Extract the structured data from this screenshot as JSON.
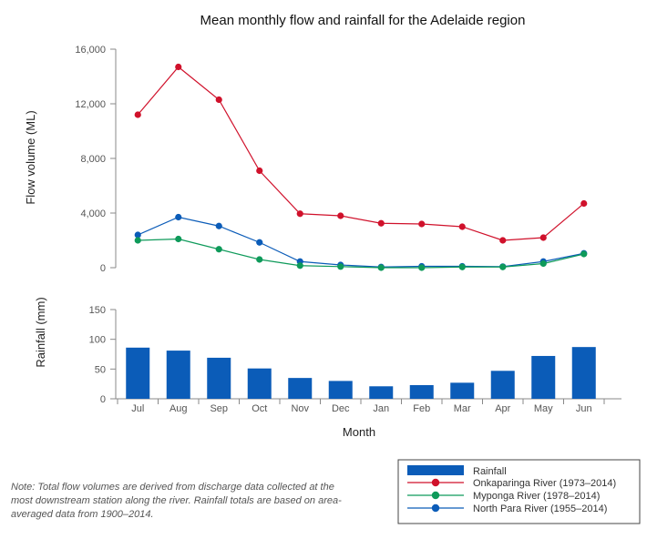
{
  "chart_data": {
    "type": "line+bar",
    "title": "Mean monthly flow and rainfall for the Adelaide region",
    "xlabel": "Month",
    "categories": [
      "Jul",
      "Aug",
      "Sep",
      "Oct",
      "Nov",
      "Dec",
      "Jan",
      "Feb",
      "Mar",
      "Apr",
      "May",
      "Jun"
    ],
    "flow": {
      "ylabel": "Flow volume (ML)",
      "ylim": [
        0,
        16000
      ],
      "yticks": [
        0,
        4000,
        8000,
        12000,
        16000
      ],
      "ytick_labels": [
        "0",
        "4,000",
        "8,000",
        "12,000",
        "16,000"
      ],
      "series": [
        {
          "name": "Onkaparinga River (1973–2014)",
          "color": "#d0112b",
          "values": [
            11200,
            14700,
            12300,
            7100,
            3950,
            3800,
            3250,
            3200,
            3000,
            2000,
            2200,
            4700
          ]
        },
        {
          "name": "Myponga River (1978–2014)",
          "color": "#0e9a5a",
          "values": [
            2000,
            2100,
            1350,
            600,
            150,
            80,
            0,
            0,
            50,
            50,
            300,
            1000
          ]
        },
        {
          "name": "North Para River (1955–2014)",
          "color": "#0b5cb8",
          "values": [
            2400,
            3700,
            3050,
            1850,
            450,
            200,
            50,
            100,
            100,
            80,
            450,
            1050
          ]
        }
      ]
    },
    "rainfall": {
      "name": "Rainfall",
      "color": "#0b5cb8",
      "ylabel": "Rainfall (mm)",
      "ylim": [
        0,
        150
      ],
      "yticks": [
        0,
        50,
        100,
        150
      ],
      "ytick_labels": [
        "0",
        "50",
        "100",
        "150"
      ],
      "values": [
        86,
        81,
        69,
        51,
        35,
        30,
        21,
        23,
        27,
        47,
        72,
        87
      ]
    }
  },
  "note": "Note: Total flow volumes are derived from discharge data collected at the most downstream station along the river. Rainfall totals are based on area-averaged data from 1900–2014."
}
